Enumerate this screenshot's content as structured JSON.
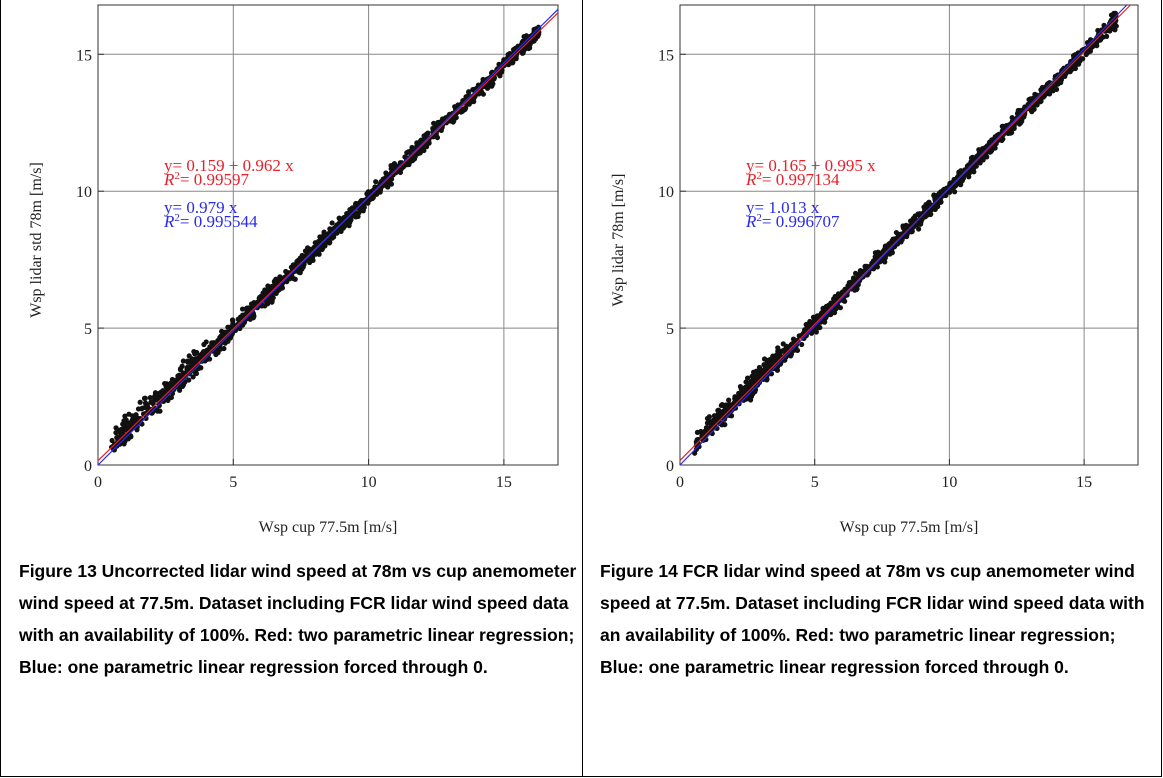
{
  "colors": {
    "point": "#111111",
    "fit_two_param": "#e8202a",
    "fit_one_param": "#2a2ae8",
    "grid": "#888888"
  },
  "chart_data": [
    {
      "type": "scatter",
      "xlabel": "Wsp cup 77.5m [m/s]",
      "ylabel": "Wsp lidar std 78m [m/s]",
      "xlim": [
        0,
        17
      ],
      "ylim": [
        0,
        16.8
      ],
      "xticks": [
        "0",
        "5",
        "10",
        "15"
      ],
      "yticks": [
        "0",
        "5",
        "10",
        "15"
      ],
      "grid": true,
      "series": [
        {
          "role": "points",
          "values_note": "",
          "seed": 13,
          "x_range": [
            0.5,
            16.3
          ],
          "slope": 0.962,
          "intercept": 0.159,
          "spread": 0.18
        }
      ],
      "fits": [
        {
          "color": "red",
          "equation": "y= 0.159 +  0.962 x",
          "r2_prefix": "R",
          "r2_value": "= 0.99597",
          "intercept": 0.159,
          "slope": 0.962
        },
        {
          "color": "blue",
          "equation": "y= 0.979 x",
          "r2_prefix": "R",
          "r2_value": "= 0.995544",
          "intercept": 0,
          "slope": 0.979
        }
      ],
      "caption": "Figure 13 Uncorrected lidar wind speed at 78m vs cup anemometer wind speed at 77.5m. Dataset including FCR lidar wind speed data with an availability of 100%. Red: two parametric linear regression; Blue: one parametric linear regression forced through 0."
    },
    {
      "type": "scatter",
      "xlabel": "Wsp cup 77.5m [m/s]",
      "ylabel": "Wsp lidar 78m [m/s]",
      "xlim": [
        0,
        17
      ],
      "ylim": [
        0,
        16.8
      ],
      "xticks": [
        "0",
        "5",
        "10",
        "15"
      ],
      "yticks": [
        "0",
        "5",
        "10",
        "15"
      ],
      "grid": true,
      "series": [
        {
          "role": "points",
          "values_note": "",
          "seed": 14,
          "x_range": [
            0.5,
            16.2
          ],
          "slope": 0.995,
          "intercept": 0.165,
          "spread": 0.17
        }
      ],
      "fits": [
        {
          "color": "red",
          "equation": "y= 0.165 +  0.995 x",
          "r2_prefix": "R",
          "r2_value": "= 0.997134",
          "intercept": 0.165,
          "slope": 0.995
        },
        {
          "color": "blue",
          "equation": "y= 1.013 x",
          "r2_prefix": "R",
          "r2_value": "= 0.996707",
          "intercept": 0,
          "slope": 1.013
        }
      ],
      "caption": "Figure 14 FCR lidar wind speed at 78m vs cup anemometer wind speed at 77.5m. Dataset including FCR lidar wind speed data with an availability of 100%. Red: two parametric linear regression; Blue: one parametric linear regression forced through 0."
    }
  ]
}
